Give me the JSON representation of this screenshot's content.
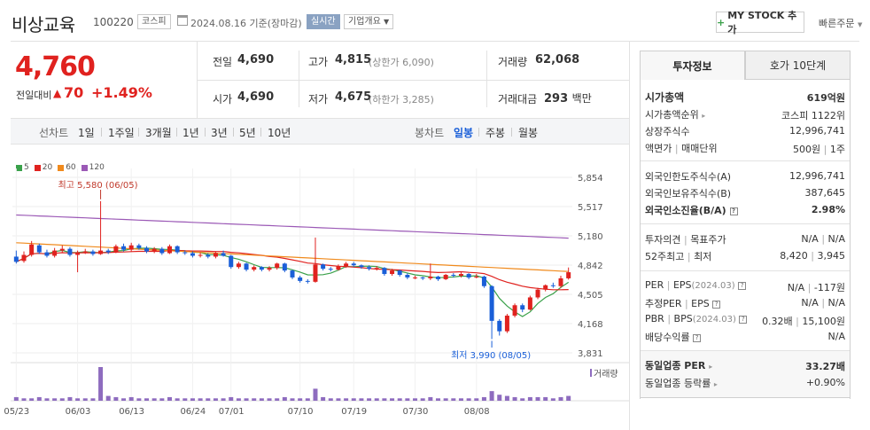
{
  "header": {
    "name": "비상교육",
    "code": "100220",
    "market": "코스피",
    "date": "2024.08.16",
    "date_suffix": "기준(장마감)",
    "realtime": "실시간",
    "overview": "기업개요",
    "mystock_label": "MY STOCK 추가",
    "quick_order": "빠른주문"
  },
  "price": {
    "current": "4,760",
    "change_label": "전일대비",
    "change": "70",
    "change_pct": "+1.49%",
    "direction": "up"
  },
  "stats": {
    "prev_label": "전일",
    "prev": "4,690",
    "open_label": "시가",
    "open": "4,690",
    "high_label": "고가",
    "high": "4,815",
    "upper_limit": "(상한가 6,090)",
    "low_label": "저가",
    "low": "4,675",
    "lower_limit": "(하한가 3,285)",
    "volume_label": "거래량",
    "volume": "62,068",
    "amount_label": "거래대금",
    "amount": "293",
    "amount_unit": "백만"
  },
  "period_tabs": {
    "label": "선차트",
    "items": [
      "1일",
      "1주일",
      "3개월",
      "1년",
      "3년",
      "5년",
      "10년"
    ]
  },
  "candle_tabs": {
    "label": "봉차트",
    "items": [
      "일봉",
      "주봉",
      "월봉"
    ],
    "selected": 0
  },
  "chart_data": {
    "type": "candlestick",
    "legend": [
      {
        "label": "5",
        "color": "#3aa14a"
      },
      {
        "label": "20",
        "color": "#e0221f"
      },
      {
        "label": "60",
        "color": "#f08a1c"
      },
      {
        "label": "120",
        "color": "#9b59b6"
      }
    ],
    "y_ticks": [
      "5,854",
      "5,517",
      "5,180",
      "4,842",
      "4,505",
      "4,168",
      "3,831"
    ],
    "ylim": [
      3831,
      5854
    ],
    "x_ticks": [
      "05/23",
      "06/03",
      "06/13",
      "06/24",
      "07/01",
      "07/10",
      "07/19",
      "07/30",
      "08/08"
    ],
    "high_note": "최고 5,580 (06/05)",
    "low_note": "최저 3,990 (08/05)",
    "volume_label": "거래량",
    "candles": [
      [
        4940,
        4880,
        5010,
        4860
      ],
      [
        4890,
        4960,
        5000,
        4870
      ],
      [
        4960,
        5080,
        5120,
        4940
      ],
      [
        5070,
        4990,
        5090,
        4970
      ],
      [
        4990,
        4950,
        5020,
        4930
      ],
      [
        4950,
        5010,
        5040,
        4930
      ],
      [
        5010,
        5030,
        5070,
        4990
      ],
      [
        5030,
        4960,
        5050,
        4940
      ],
      [
        4960,
        4990,
        5010,
        4760
      ],
      [
        4990,
        5000,
        5030,
        4970
      ],
      [
        5000,
        4970,
        5020,
        4950
      ],
      [
        4970,
        5010,
        5580,
        4960
      ],
      [
        5010,
        4990,
        5030,
        4970
      ],
      [
        4990,
        5060,
        5080,
        4980
      ],
      [
        5060,
        5020,
        5090,
        5000
      ],
      [
        5020,
        5070,
        5100,
        5000
      ],
      [
        5070,
        5040,
        5090,
        5020
      ],
      [
        5040,
        5000,
        5060,
        4980
      ],
      [
        5000,
        5030,
        5050,
        4980
      ],
      [
        5030,
        4980,
        5050,
        4960
      ],
      [
        4980,
        5060,
        5080,
        4970
      ],
      [
        5060,
        4990,
        5070,
        4970
      ],
      [
        4990,
        4980,
        5010,
        4960
      ],
      [
        4980,
        4950,
        5000,
        4930
      ],
      [
        4950,
        4960,
        4990,
        4930
      ],
      [
        4960,
        4940,
        4980,
        4920
      ],
      [
        4940,
        4980,
        5000,
        4920
      ],
      [
        4980,
        4950,
        5010,
        4940
      ],
      [
        4950,
        4820,
        4960,
        4800
      ],
      [
        4820,
        4860,
        4880,
        4800
      ],
      [
        4860,
        4790,
        4870,
        4770
      ],
      [
        4790,
        4820,
        4840,
        4770
      ],
      [
        4820,
        4790,
        4830,
        4770
      ],
      [
        4790,
        4810,
        4830,
        4770
      ],
      [
        4810,
        4860,
        4870,
        4790
      ],
      [
        4860,
        4780,
        4870,
        4760
      ],
      [
        4780,
        4700,
        4790,
        4680
      ],
      [
        4700,
        4660,
        4720,
        4640
      ],
      [
        4660,
        4650,
        4680,
        4630
      ],
      [
        4650,
        4850,
        5160,
        4640
      ],
      [
        4850,
        4800,
        4860,
        4780
      ],
      [
        4800,
        4790,
        4820,
        4770
      ],
      [
        4790,
        4830,
        4850,
        4780
      ],
      [
        4830,
        4860,
        4880,
        4810
      ],
      [
        4860,
        4840,
        4880,
        4820
      ],
      [
        4840,
        4820,
        4850,
        4800
      ],
      [
        4820,
        4800,
        4840,
        4780
      ],
      [
        4800,
        4810,
        4830,
        4780
      ],
      [
        4810,
        4740,
        4820,
        4720
      ],
      [
        4740,
        4780,
        4800,
        4720
      ],
      [
        4780,
        4730,
        4790,
        4710
      ],
      [
        4730,
        4700,
        4750,
        4680
      ],
      [
        4700,
        4700,
        4720,
        4680
      ],
      [
        4700,
        4690,
        4710,
        4670
      ],
      [
        4690,
        4710,
        4860,
        4670
      ],
      [
        4710,
        4680,
        4720,
        4660
      ],
      [
        4680,
        4730,
        4740,
        4670
      ],
      [
        4730,
        4720,
        4750,
        4700
      ],
      [
        4720,
        4740,
        4760,
        4700
      ],
      [
        4740,
        4700,
        4750,
        4680
      ],
      [
        4700,
        4710,
        4740,
        4690
      ],
      [
        4710,
        4600,
        4720,
        4580
      ],
      [
        4600,
        4200,
        4610,
        3990
      ],
      [
        4200,
        4080,
        4220,
        4030
      ],
      [
        4080,
        4260,
        4280,
        4060
      ],
      [
        4260,
        4380,
        4400,
        4240
      ],
      [
        4380,
        4330,
        4400,
        4300
      ],
      [
        4330,
        4470,
        4490,
        4320
      ],
      [
        4470,
        4560,
        4580,
        4450
      ],
      [
        4560,
        4610,
        4620,
        4540
      ],
      [
        4610,
        4600,
        4640,
        4580
      ],
      [
        4600,
        4690,
        4720,
        4580
      ],
      [
        4690,
        4760,
        4815,
        4675
      ]
    ],
    "volumes": [
      3,
      2,
      2,
      3,
      2,
      2,
      2,
      3,
      2,
      2,
      2,
      28,
      4,
      3,
      2,
      3,
      2,
      2,
      2,
      2,
      3,
      2,
      2,
      2,
      2,
      2,
      2,
      2,
      3,
      2,
      2,
      2,
      2,
      2,
      2,
      3,
      2,
      2,
      2,
      10,
      3,
      2,
      2,
      2,
      2,
      2,
      2,
      2,
      2,
      2,
      2,
      2,
      2,
      2,
      3,
      2,
      2,
      2,
      2,
      2,
      2,
      3,
      8,
      5,
      4,
      3,
      2,
      3,
      3,
      3,
      2,
      3,
      4
    ]
  },
  "right_panel": {
    "tab_info": "투자정보",
    "tab_quote": "호가 10단계",
    "market_cap_label": "시가총액",
    "market_cap": "619억원",
    "market_cap_rank_label": "시가총액순위",
    "market_cap_rank": "코스피 1122위",
    "shares_label": "상장주식수",
    "shares": "12,996,741",
    "face_value_label": "액면가",
    "unit_label": "매매단위",
    "face_value": "500원",
    "unit": "1주",
    "foreign_limit_label": "외국인한도주식수(A)",
    "foreign_limit": "12,996,741",
    "foreign_hold_label": "외국인보유주식수(B)",
    "foreign_hold": "387,645",
    "foreign_ratio_label": "외국인소진율(B/A)",
    "foreign_ratio": "2.98%",
    "opinion_label": "투자의견",
    "target_label": "목표주가",
    "opinion": "N/A",
    "target": "N/A",
    "week52_label": "52주최고",
    "week52_low_label": "최저",
    "week52_high": "8,420",
    "week52_low": "3,945",
    "per_label": "PER",
    "eps_label": "EPS",
    "per_date": "(2024.03)",
    "per": "N/A",
    "eps": "-117원",
    "est_per_label": "추정PER",
    "est_eps_label": "EPS",
    "est_per": "N/A",
    "est_eps": "N/A",
    "pbr_label": "PBR",
    "bps_label": "BPS",
    "pbr_date": "(2024.03)",
    "pbr": "0.32배",
    "bps": "15,100원",
    "dividend_label": "배당수익률",
    "dividend": "N/A",
    "sector_per_label": "동일업종 PER",
    "sector_per": "33.27배",
    "sector_chg_label": "동일업종 등락률",
    "sector_chg": "+0.90%"
  }
}
